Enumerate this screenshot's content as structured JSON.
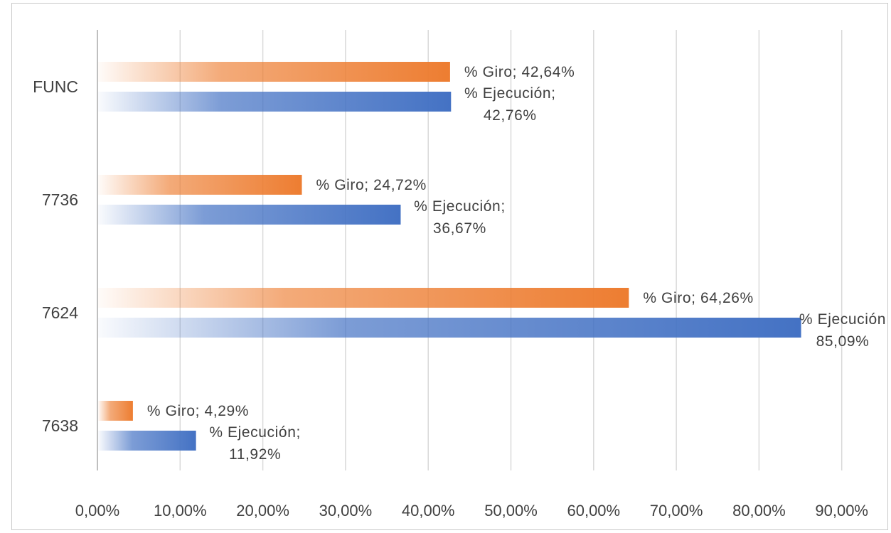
{
  "chart_data": {
    "type": "bar",
    "orientation": "horizontal",
    "categories": [
      "FUNC",
      "7736",
      "7624",
      "7638"
    ],
    "series": [
      {
        "name": "% Giro",
        "values": [
          42.64,
          24.72,
          64.26,
          4.29
        ],
        "color": "#ED7D31"
      },
      {
        "name": "% Ejecución",
        "values": [
          42.76,
          36.67,
          85.09,
          11.92
        ],
        "color": "#4472C4"
      }
    ],
    "data_labels": [
      {
        "category": "FUNC",
        "series": "% Giro",
        "lines": [
          "% Giro; 42,64%"
        ]
      },
      {
        "category": "FUNC",
        "series": "% Ejecución",
        "lines": [
          "% Ejecución;",
          "42,76%"
        ]
      },
      {
        "category": "7736",
        "series": "% Giro",
        "lines": [
          "% Giro; 24,72%"
        ]
      },
      {
        "category": "7736",
        "series": "% Ejecución",
        "lines": [
          "% Ejecución;",
          "36,67%"
        ]
      },
      {
        "category": "7624",
        "series": "% Giro",
        "lines": [
          "% Giro; 64,26%"
        ]
      },
      {
        "category": "7624",
        "series": "% Ejecución",
        "lines": [
          "% Ejecución",
          "85,09%"
        ]
      },
      {
        "category": "7638",
        "series": "% Giro",
        "lines": [
          "% Giro; 4,29%"
        ]
      },
      {
        "category": "7638",
        "series": "% Ejecución",
        "lines": [
          "% Ejecución;",
          "11,92%"
        ]
      }
    ],
    "x_ticks": [
      "0,00%",
      "10,00%",
      "20,00%",
      "30,00%",
      "40,00%",
      "50,00%",
      "60,00%",
      "70,00%",
      "80,00%",
      "90,00%"
    ],
    "xlim": [
      0,
      90
    ],
    "grid": true,
    "legend": "none",
    "title": "",
    "xlabel": "",
    "ylabel": ""
  }
}
